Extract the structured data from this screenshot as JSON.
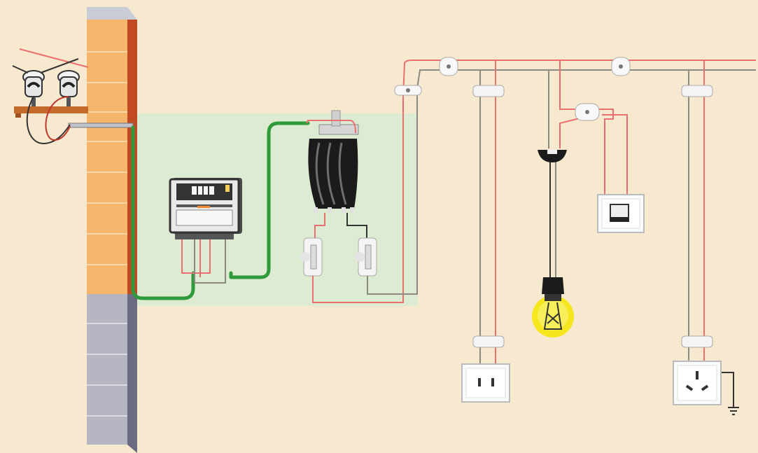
{
  "diagram": {
    "kind": "household-wiring-illustration",
    "colors": {
      "background": "#f7e9cf",
      "meter_zone": "#dcebd1",
      "brick": "#f5b66c",
      "brick_side": "#c14a22",
      "wall_stone": "#b5b6c1",
      "wall_stone_side": "#6b6b82",
      "live_wire": "#ec6f6f",
      "neutral_wire": "#8a8a80",
      "service_cable": "#2e9a3c",
      "breaker_body": "#1b1b1b",
      "bulb_glow": "#f5e60a"
    },
    "components": [
      {
        "name": "insulator-pair",
        "label": ""
      },
      {
        "name": "electric-meter",
        "label": ""
      },
      {
        "name": "main-breaker",
        "label": ""
      },
      {
        "name": "fuse",
        "label": ""
      },
      {
        "name": "junction-box",
        "label": ""
      },
      {
        "name": "ceiling-rose",
        "label": ""
      },
      {
        "name": "light-bulb",
        "label": ""
      },
      {
        "name": "wall-switch",
        "label": ""
      },
      {
        "name": "two-pin-socket",
        "label": ""
      },
      {
        "name": "three-pin-socket",
        "label": ""
      },
      {
        "name": "ground-symbol",
        "label": ""
      }
    ]
  }
}
